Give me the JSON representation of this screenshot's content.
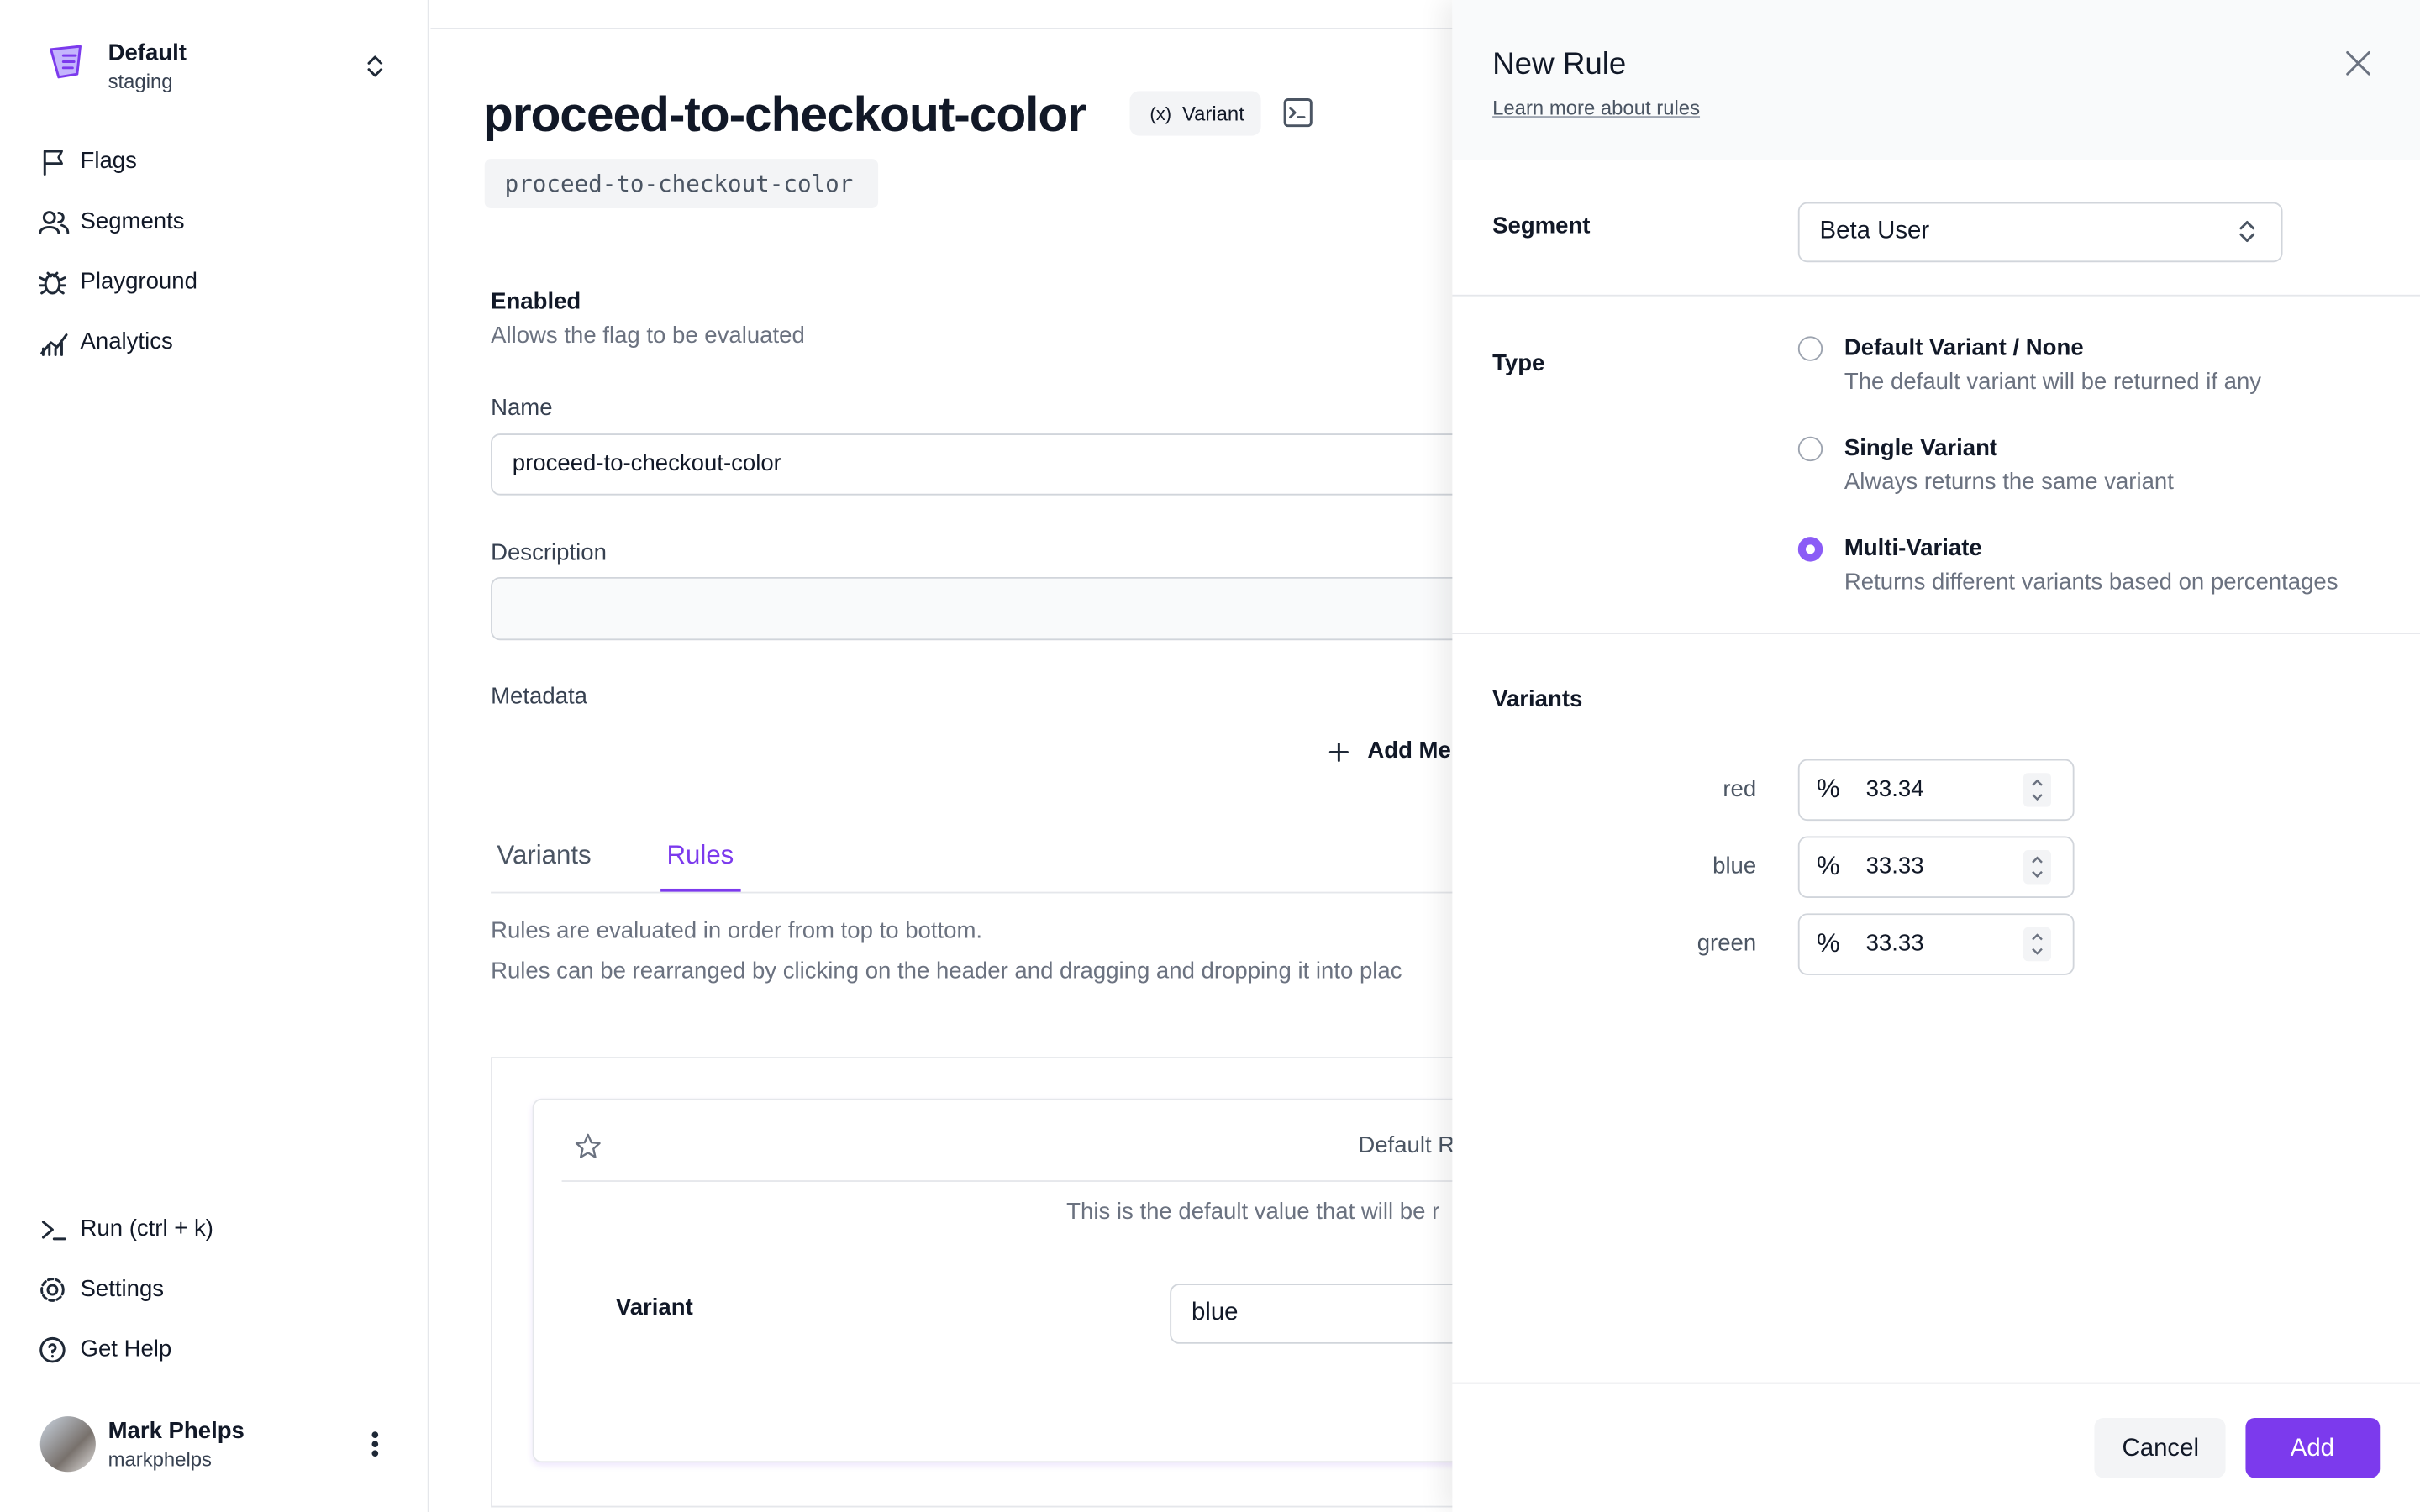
{
  "sidebar": {
    "org": "Default",
    "env": "staging",
    "nav": [
      "Flags",
      "Segments",
      "Playground",
      "Analytics"
    ],
    "bottom_nav": [
      "Run (ctrl + k)",
      "Settings",
      "Get Help"
    ],
    "user": {
      "name": "Mark Phelps",
      "handle": "markphelps"
    }
  },
  "flag": {
    "title": "proceed-to-checkout-color",
    "badge": "Variant",
    "key": "proceed-to-checkout-color",
    "enabled_label": "Enabled",
    "enabled_desc": "Allows the flag to be evaluated",
    "name_label": "Name",
    "name_value": "proceed-to-checkout-color",
    "description_label": "Description",
    "metadata_label": "Metadata",
    "add_metadata": "Add Me",
    "tabs": [
      "Variants",
      "Rules"
    ],
    "active_tab": 1,
    "rules_info": [
      "Rules are evaluated in order from top to bottom.",
      "Rules can be rearranged by clicking on the header and dragging and dropping it into plac"
    ],
    "default_rule": {
      "title": "Default R",
      "desc": "This is the default value that will be r",
      "variant_label": "Variant",
      "variant_value": "blue"
    }
  },
  "panel": {
    "title": "New Rule",
    "link": "Learn more about rules",
    "segment_label": "Segment",
    "segment_value": "Beta User",
    "type_label": "Type",
    "types": [
      {
        "label": "Default Variant / None",
        "desc": "The default variant will be returned if any"
      },
      {
        "label": "Single Variant",
        "desc": "Always returns the same variant"
      },
      {
        "label": "Multi-Variate",
        "desc": "Returns different variants based on percentages"
      }
    ],
    "selected_type": 2,
    "variants_label": "Variants",
    "percent_symbol": "%",
    "variants": [
      {
        "key": "red",
        "percent": 33.34
      },
      {
        "key": "blue",
        "percent": 33.33
      },
      {
        "key": "green",
        "percent": 33.33
      }
    ],
    "cancel": "Cancel",
    "add": "Add"
  }
}
